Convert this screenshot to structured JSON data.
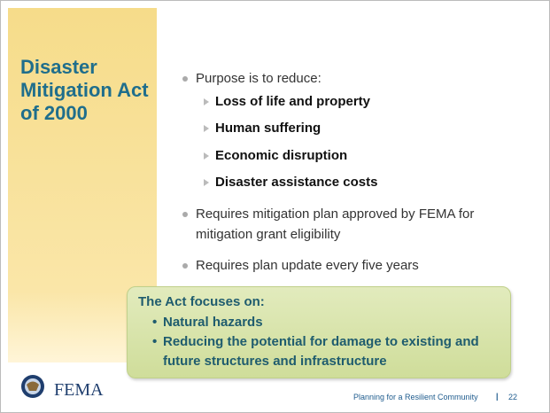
{
  "slide": {
    "title": "Disaster Mitigation Act of 2000",
    "bullets": [
      {
        "text": "Purpose is to reduce:",
        "items": [
          "Loss of life and property",
          "Human suffering",
          "Economic disruption",
          "Disaster assistance costs"
        ]
      },
      {
        "text": "Requires mitigation plan approved by FEMA for mitigation grant eligibility"
      },
      {
        "text": "Requires plan update every five years"
      }
    ],
    "callout": {
      "heading": "The Act focuses on:",
      "items": [
        "Natural hazards",
        "Reducing the potential for damage to existing and future structures and infrastructure"
      ]
    },
    "footer": {
      "logo": "FEMA",
      "text": "Planning for a Resilient Community",
      "page": "22"
    }
  }
}
